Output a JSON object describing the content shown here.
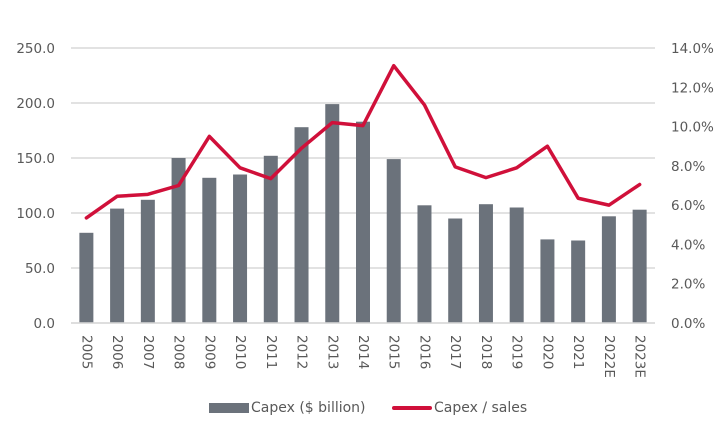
{
  "chart_data": {
    "type": "bar+line",
    "title": "",
    "categories": [
      "2005",
      "2006",
      "2007",
      "2008",
      "2009",
      "2010",
      "2011",
      "2012",
      "2013",
      "2014",
      "2015",
      "2016",
      "2017",
      "2018",
      "2019",
      "2020",
      "2021",
      "2022E",
      "2023E"
    ],
    "series": [
      {
        "name": "Capex ($ billion)",
        "type": "bar",
        "axis": "left",
        "color": "#6b727b",
        "values": [
          82,
          104,
          112,
          150,
          132,
          135,
          152,
          178,
          199,
          183,
          149,
          107,
          95,
          108,
          105,
          76,
          75,
          97,
          103
        ]
      },
      {
        "name": "Capex / sales",
        "type": "line",
        "axis": "right",
        "color": "#d0103a",
        "values": [
          5.35,
          6.45,
          6.55,
          7.0,
          9.5,
          7.9,
          7.35,
          8.9,
          10.2,
          10.05,
          13.1,
          11.1,
          7.95,
          7.4,
          7.9,
          9.0,
          6.35,
          6.0,
          7.05
        ]
      }
    ],
    "left_axis": {
      "range": [
        0,
        250
      ],
      "ticks": [
        0,
        50,
        100,
        150,
        200,
        250
      ],
      "tick_labels": [
        "0.0",
        "50.0",
        "100.0",
        "150.0",
        "200.0",
        "250.0"
      ]
    },
    "right_axis": {
      "range": [
        0,
        14
      ],
      "ticks": [
        0,
        2,
        4,
        6,
        8,
        10,
        12,
        14
      ],
      "tick_labels": [
        "0.0%",
        "2.0%",
        "4.0%",
        "6.0%",
        "8.0%",
        "10.0%",
        "12.0%",
        "14.0%"
      ]
    },
    "xlabel": "",
    "ylabel": "",
    "grid": true,
    "legend_position": "bottom",
    "colors": {
      "gridline": "#d9d9d9",
      "text": "#595959"
    }
  },
  "legend": {
    "items": [
      {
        "label": "Capex ($ billion)",
        "kind": "bar",
        "color": "#6b727b"
      },
      {
        "label": "Capex / sales",
        "kind": "line",
        "color": "#d0103a"
      }
    ]
  }
}
